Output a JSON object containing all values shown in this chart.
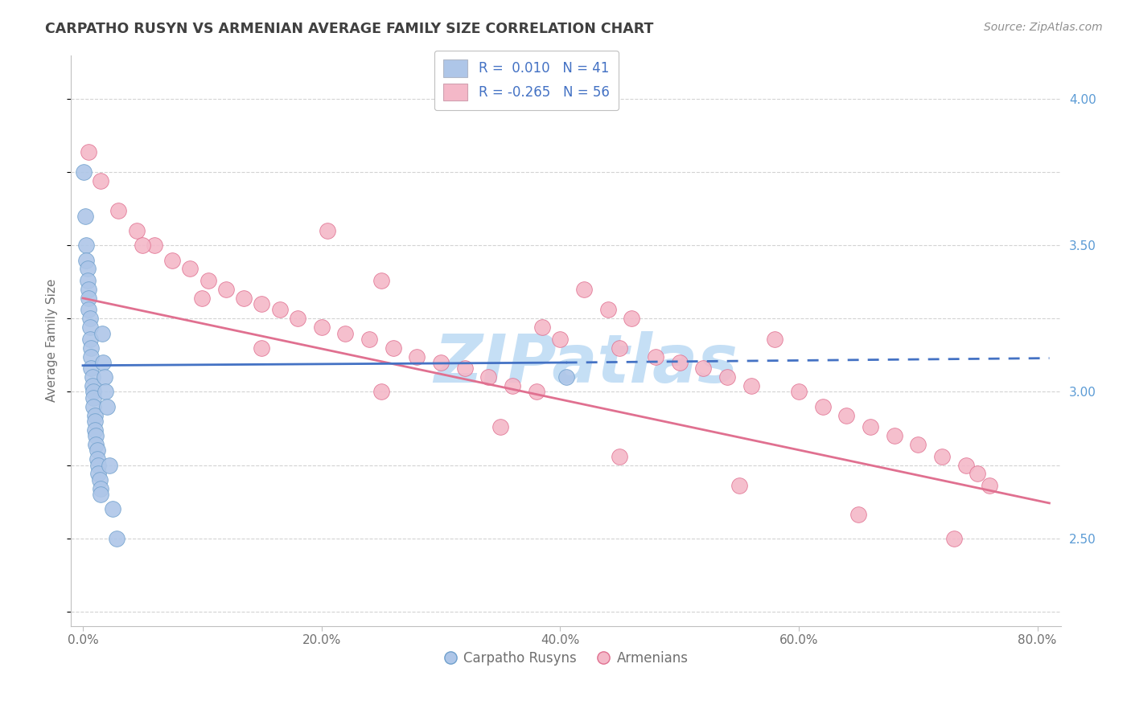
{
  "title": "CARPATHO RUSYN VS ARMENIAN AVERAGE FAMILY SIZE CORRELATION CHART",
  "source": "Source: ZipAtlas.com",
  "ylabel": "Average Family Size",
  "xlabel_ticks": [
    "0.0%",
    "20.0%",
    "40.0%",
    "60.0%",
    "80.0%"
  ],
  "xlabel_vals": [
    0.0,
    20.0,
    40.0,
    60.0,
    80.0
  ],
  "yticks_right": [
    2.5,
    3.0,
    3.5,
    4.0
  ],
  "ylim": [
    2.2,
    4.15
  ],
  "xlim": [
    -1.0,
    82.0
  ],
  "series_blue": {
    "name": "Carpatho Rusyns",
    "color": "#aec6e8",
    "edge_color": "#6fa0cc",
    "x": [
      0.1,
      0.2,
      0.3,
      0.3,
      0.4,
      0.4,
      0.5,
      0.5,
      0.5,
      0.6,
      0.6,
      0.6,
      0.7,
      0.7,
      0.7,
      0.8,
      0.8,
      0.9,
      0.9,
      0.9,
      1.0,
      1.0,
      1.0,
      1.1,
      1.1,
      1.2,
      1.2,
      1.3,
      1.3,
      1.4,
      1.5,
      1.5,
      1.6,
      1.7,
      1.8,
      1.9,
      2.0,
      2.2,
      2.5,
      2.8,
      40.5
    ],
    "y": [
      3.75,
      3.6,
      3.5,
      3.45,
      3.42,
      3.38,
      3.35,
      3.32,
      3.28,
      3.25,
      3.22,
      3.18,
      3.15,
      3.12,
      3.08,
      3.05,
      3.02,
      3.0,
      2.98,
      2.95,
      2.92,
      2.9,
      2.87,
      2.85,
      2.82,
      2.8,
      2.77,
      2.75,
      2.72,
      2.7,
      2.67,
      2.65,
      3.2,
      3.1,
      3.05,
      3.0,
      2.95,
      2.75,
      2.6,
      2.5,
      3.05
    ]
  },
  "series_pink": {
    "name": "Armenians",
    "color": "#f4b8c8",
    "edge_color": "#e07090",
    "x": [
      0.5,
      1.5,
      3.0,
      4.5,
      6.0,
      7.5,
      9.0,
      10.5,
      12.0,
      13.5,
      15.0,
      16.5,
      18.0,
      20.0,
      20.5,
      22.0,
      24.0,
      25.0,
      26.0,
      28.0,
      30.0,
      32.0,
      34.0,
      36.0,
      38.0,
      38.5,
      40.0,
      42.0,
      44.0,
      45.0,
      46.0,
      48.0,
      50.0,
      52.0,
      54.0,
      56.0,
      58.0,
      60.0,
      62.0,
      64.0,
      66.0,
      68.0,
      70.0,
      72.0,
      73.0,
      74.0,
      75.0,
      76.0,
      5.0,
      10.0,
      15.0,
      25.0,
      35.0,
      45.0,
      55.0,
      65.0
    ],
    "y": [
      3.82,
      3.72,
      3.62,
      3.55,
      3.5,
      3.45,
      3.42,
      3.38,
      3.35,
      3.32,
      3.3,
      3.28,
      3.25,
      3.22,
      3.55,
      3.2,
      3.18,
      3.38,
      3.15,
      3.12,
      3.1,
      3.08,
      3.05,
      3.02,
      3.0,
      3.22,
      3.18,
      3.35,
      3.28,
      3.15,
      3.25,
      3.12,
      3.1,
      3.08,
      3.05,
      3.02,
      3.18,
      3.0,
      2.95,
      2.92,
      2.88,
      2.85,
      2.82,
      2.78,
      2.5,
      2.75,
      2.72,
      2.68,
      3.5,
      3.32,
      3.15,
      3.0,
      2.88,
      2.78,
      2.68,
      2.58
    ]
  },
  "trend_blue_solid": {
    "x_start": 0.0,
    "x_end": 40.5,
    "y_start": 3.09,
    "y_end": 3.1,
    "color": "#4472c4",
    "linestyle": "-",
    "linewidth": 2.0
  },
  "trend_blue_dashed": {
    "x_start": 40.5,
    "x_end": 81.0,
    "y_start": 3.1,
    "y_end": 3.115,
    "color": "#4472c4",
    "linestyle": "--",
    "linewidth": 2.0
  },
  "trend_pink": {
    "x_start": 0.0,
    "x_end": 81.0,
    "y_start": 3.32,
    "y_end": 2.62,
    "color": "#e07090",
    "linestyle": "-",
    "linewidth": 2.0
  },
  "background_color": "#ffffff",
  "grid_color": "#c8c8c8",
  "title_color": "#404040",
  "axis_color": "#c0c0c0",
  "watermark_text": "ZIPatlas",
  "watermark_color": "#c5dff5",
  "watermark_fontsize": 60
}
